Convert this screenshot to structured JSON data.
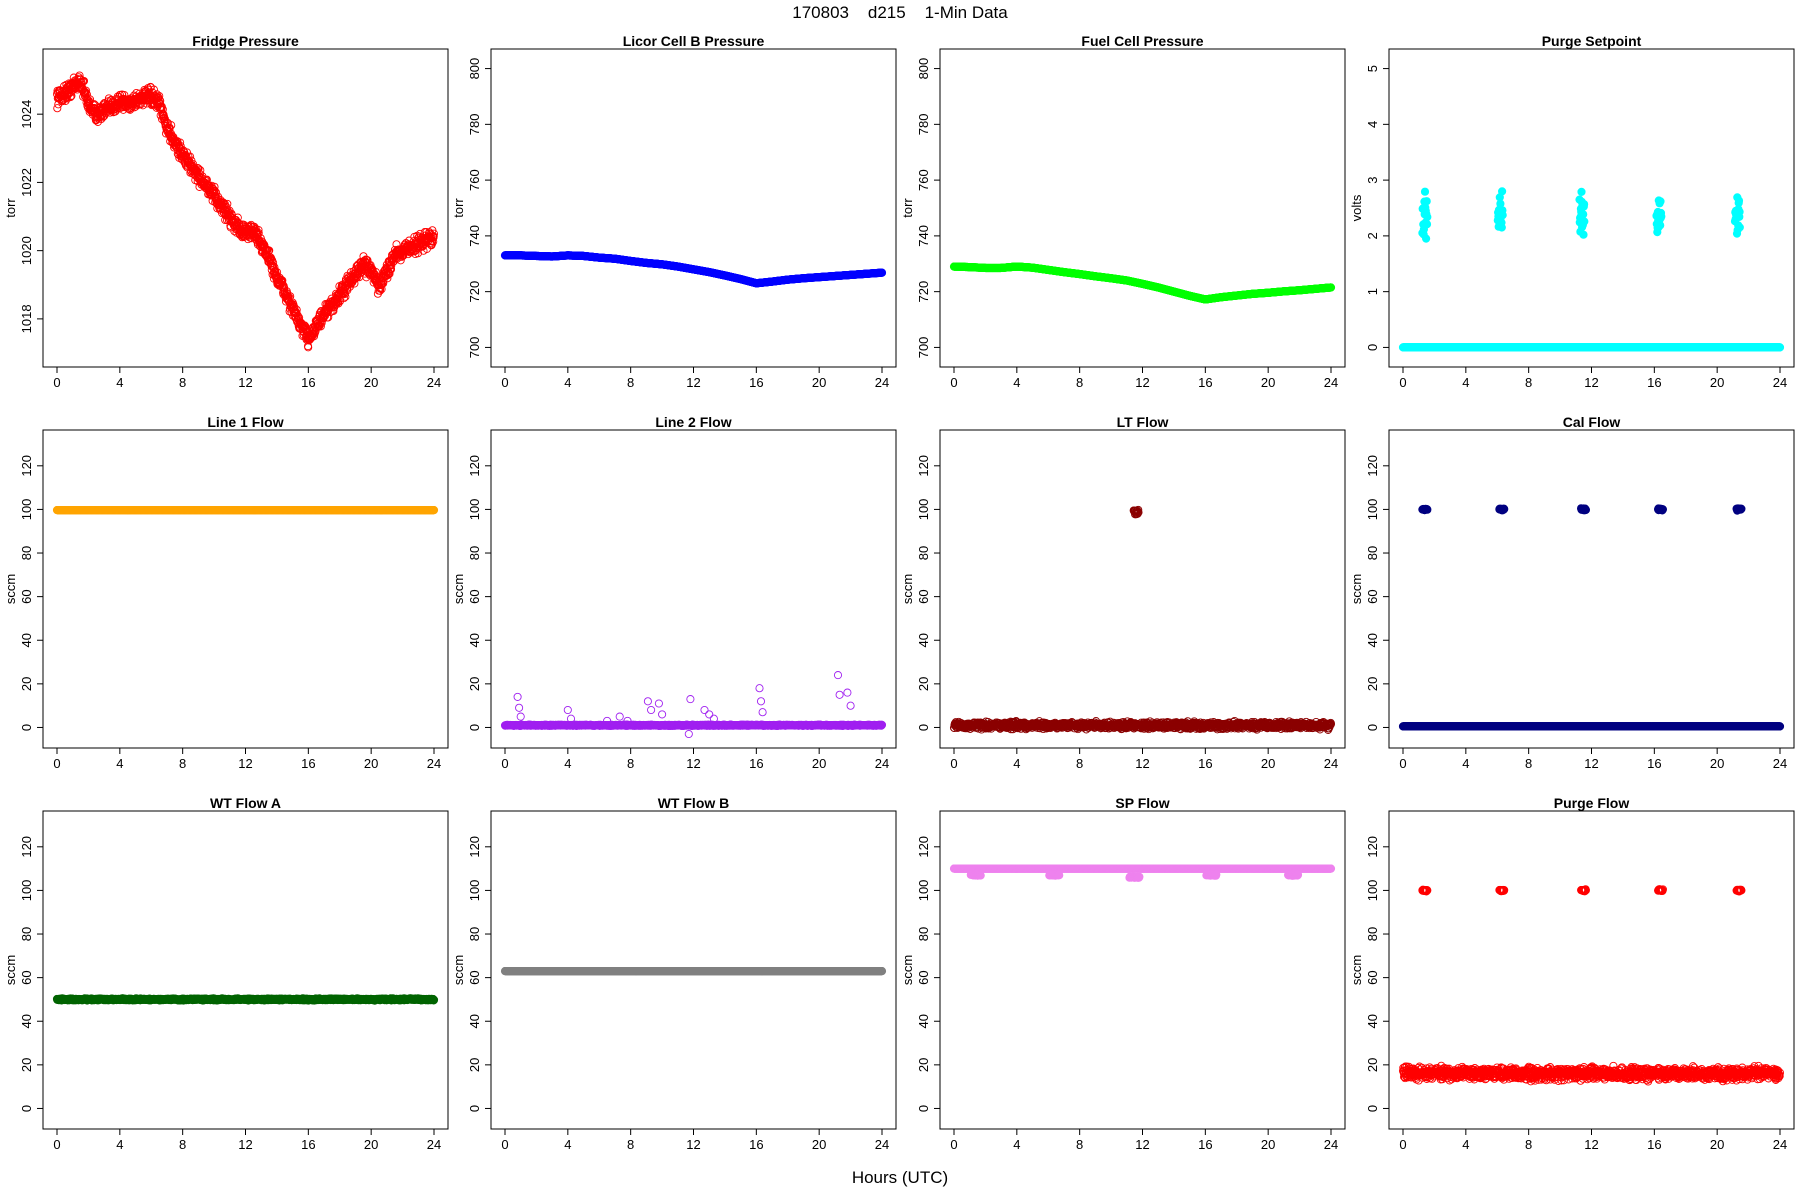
{
  "figure": {
    "title": "170803    d215    1-Min Data",
    "xlabel": "Hours (UTC)"
  },
  "chart_data": [
    {
      "type": "scatter",
      "title": "Fridge Pressure",
      "ylabel": "torr",
      "color": "#ff0000",
      "marker": "open-circle",
      "xlim": [
        0,
        24
      ],
      "ylim": [
        1017,
        1025.5
      ],
      "xticks": [
        0,
        4,
        8,
        12,
        16,
        20,
        24
      ],
      "yticks": [
        1018,
        1020,
        1022,
        1024
      ],
      "x": [
        0,
        0.5,
        1,
        1.5,
        2,
        2.5,
        3,
        3.5,
        4,
        4.5,
        5,
        5.5,
        6,
        6.5,
        7,
        7.5,
        8,
        8.5,
        9,
        9.5,
        10,
        10.5,
        11,
        11.5,
        12,
        12.5,
        13,
        13.5,
        14,
        14.5,
        15,
        15.5,
        16,
        16.5,
        17,
        17.5,
        18,
        18.5,
        19,
        19.5,
        20,
        20.5,
        21,
        21.5,
        22,
        22.5,
        23,
        23.5,
        24
      ],
      "y": [
        1024.5,
        1024.6,
        1024.8,
        1025,
        1024.3,
        1024,
        1024.1,
        1024.2,
        1024.4,
        1024.3,
        1024.4,
        1024.5,
        1024.5,
        1024.3,
        1023.6,
        1023.2,
        1022.8,
        1022.5,
        1022.2,
        1021.9,
        1021.6,
        1021.3,
        1021,
        1020.7,
        1020.5,
        1020.6,
        1020.2,
        1019.8,
        1019.2,
        1018.8,
        1018.3,
        1017.8,
        1017.4,
        1017.8,
        1018.1,
        1018.4,
        1018.7,
        1019,
        1019.3,
        1019.6,
        1019.4,
        1018.9,
        1019.4,
        1019.9,
        1020,
        1020.1,
        1020.2,
        1020.3,
        1020.4
      ],
      "scatter": 0.35
    },
    {
      "type": "scatter",
      "title": "Licor Cell B Pressure",
      "ylabel": "torr",
      "color": "#0000ff",
      "marker": "filled",
      "xlim": [
        0,
        24
      ],
      "ylim": [
        698,
        802
      ],
      "xticks": [
        0,
        4,
        8,
        12,
        16,
        20,
        24
      ],
      "yticks": [
        700,
        720,
        740,
        760,
        780,
        800
      ],
      "x": [
        0,
        1,
        2,
        3,
        4,
        5,
        6,
        7,
        8,
        9,
        10,
        11,
        12,
        13,
        14,
        15,
        16,
        17,
        18,
        19,
        20,
        21,
        22,
        23,
        24
      ],
      "y": [
        733,
        733,
        732.8,
        732.6,
        733,
        732.8,
        732.2,
        731.8,
        731,
        730.3,
        729.8,
        729,
        728,
        727,
        725.8,
        724.5,
        723,
        723.6,
        724.3,
        724.8,
        725.2,
        725.6,
        726,
        726.4,
        726.8
      ],
      "scatter": 0
    },
    {
      "type": "scatter",
      "title": "Fuel Cell Pressure",
      "ylabel": "torr",
      "color": "#00ff00",
      "marker": "filled",
      "xlim": [
        0,
        24
      ],
      "ylim": [
        698,
        802
      ],
      "xticks": [
        0,
        4,
        8,
        12,
        16,
        20,
        24
      ],
      "yticks": [
        700,
        720,
        740,
        760,
        780,
        800
      ],
      "x": [
        0,
        1,
        2,
        3,
        4,
        5,
        6,
        7,
        8,
        9,
        10,
        11,
        12,
        13,
        14,
        15,
        16,
        17,
        18,
        19,
        20,
        21,
        22,
        23,
        24
      ],
      "y": [
        729,
        728.8,
        728.5,
        728.5,
        729,
        728.6,
        727.8,
        727,
        726.3,
        725.5,
        724.8,
        724,
        722.8,
        721.5,
        720,
        718.5,
        717.2,
        718,
        718.6,
        719.2,
        719.6,
        720.1,
        720.5,
        721,
        721.5
      ],
      "scatter": 0
    },
    {
      "type": "scatter",
      "title": "Purge Setpoint",
      "ylabel": "volts",
      "color": "#00ffff",
      "marker": "filled",
      "xlim": [
        0,
        24
      ],
      "ylim": [
        -0.1,
        5.1
      ],
      "xticks": [
        0,
        4,
        8,
        12,
        16,
        20,
        24
      ],
      "yticks": [
        0,
        1,
        2,
        3,
        4,
        5
      ],
      "baseline": 0,
      "event_hours": [
        1.4,
        6.2,
        11.4,
        16.3,
        21.3
      ],
      "event_value": 2.32,
      "scatter": 0
    },
    {
      "type": "scatter",
      "title": "Line 1 Flow",
      "ylabel": "sccm",
      "color": "#ffa500",
      "marker": "filled",
      "xlim": [
        0,
        24
      ],
      "ylim": [
        -3,
        130
      ],
      "xticks": [
        0,
        4,
        8,
        12,
        16,
        20,
        24
      ],
      "yticks": [
        0,
        20,
        40,
        60,
        80,
        100,
        120
      ],
      "baseline": 99.7,
      "scatter": 0
    },
    {
      "type": "scatter",
      "title": "Line 2 Flow",
      "ylabel": "sccm",
      "color": "#a020f0",
      "marker": "open-circle",
      "xlim": [
        0,
        24
      ],
      "ylim": [
        -3,
        130
      ],
      "xticks": [
        0,
        4,
        8,
        12,
        16,
        20,
        24
      ],
      "yticks": [
        0,
        20,
        40,
        60,
        80,
        100,
        120
      ],
      "baseline": 1,
      "spikes": [
        [
          0.8,
          14
        ],
        [
          0.9,
          9
        ],
        [
          1,
          5
        ],
        [
          4,
          8
        ],
        [
          4.2,
          4
        ],
        [
          6.5,
          3
        ],
        [
          7.3,
          5
        ],
        [
          7.8,
          3
        ],
        [
          9.1,
          12
        ],
        [
          9.3,
          8
        ],
        [
          9.8,
          11
        ],
        [
          10,
          6
        ],
        [
          11.8,
          13
        ],
        [
          11.7,
          -3
        ],
        [
          12.7,
          8
        ],
        [
          13,
          6
        ],
        [
          13.3,
          4
        ],
        [
          16.2,
          18
        ],
        [
          16.3,
          12
        ],
        [
          16.4,
          7
        ],
        [
          21.2,
          24
        ],
        [
          21.3,
          15
        ],
        [
          21.8,
          16
        ],
        [
          22,
          10
        ]
      ],
      "scatter": 0.4
    },
    {
      "type": "scatter",
      "title": "LT Flow",
      "ylabel": "sccm",
      "color": "#8b0000",
      "marker": "open-circle",
      "xlim": [
        0,
        24
      ],
      "ylim": [
        -3,
        130
      ],
      "xticks": [
        0,
        4,
        8,
        12,
        16,
        20,
        24
      ],
      "yticks": [
        0,
        20,
        40,
        60,
        80,
        100,
        120
      ],
      "baseline": 1,
      "event_hours": [
        11.6
      ],
      "event_value": 99,
      "scatter": 2.2
    },
    {
      "type": "scatter",
      "title": "Cal Flow",
      "ylabel": "sccm",
      "color": "#000080",
      "marker": "filled",
      "xlim": [
        0,
        24
      ],
      "ylim": [
        -3,
        130
      ],
      "xticks": [
        0,
        4,
        8,
        12,
        16,
        20,
        24
      ],
      "yticks": [
        0,
        20,
        40,
        60,
        80,
        100,
        120
      ],
      "baseline": 0.5,
      "event_hours": [
        1.4,
        6.3,
        11.5,
        16.4,
        21.4
      ],
      "event_value": 100,
      "scatter": 0
    },
    {
      "type": "scatter",
      "title": "WT Flow A",
      "ylabel": "sccm",
      "color": "#006400",
      "marker": "filled",
      "xlim": [
        0,
        24
      ],
      "ylim": [
        -3,
        130
      ],
      "xticks": [
        0,
        4,
        8,
        12,
        16,
        20,
        24
      ],
      "yticks": [
        0,
        20,
        40,
        60,
        80,
        100,
        120
      ],
      "baseline": 50,
      "scatter": 0.6
    },
    {
      "type": "scatter",
      "title": "WT Flow B",
      "ylabel": "sccm",
      "color": "#808080",
      "marker": "filled",
      "xlim": [
        0,
        24
      ],
      "ylim": [
        -3,
        130
      ],
      "xticks": [
        0,
        4,
        8,
        12,
        16,
        20,
        24
      ],
      "yticks": [
        0,
        20,
        40,
        60,
        80,
        100,
        120
      ],
      "baseline": 63,
      "scatter": 0
    },
    {
      "type": "scatter",
      "title": "SP Flow",
      "ylabel": "sccm",
      "color": "#ee82ee",
      "marker": "filled",
      "xlim": [
        0,
        24
      ],
      "ylim": [
        -3,
        130
      ],
      "xticks": [
        0,
        4,
        8,
        12,
        16,
        20,
        24
      ],
      "yticks": [
        0,
        20,
        40,
        60,
        80,
        100,
        120
      ],
      "baseline": 110,
      "dips": [
        [
          1.4,
          107
        ],
        [
          6.4,
          107
        ],
        [
          11.5,
          106
        ],
        [
          16.4,
          107
        ],
        [
          21.6,
          107
        ]
      ],
      "scatter": 0
    },
    {
      "type": "scatter",
      "title": "Purge Flow",
      "ylabel": "sccm",
      "color": "#ff0000",
      "marker": "open-circle",
      "xlim": [
        0,
        24
      ],
      "ylim": [
        -3,
        130
      ],
      "xticks": [
        0,
        4,
        8,
        12,
        16,
        20,
        24
      ],
      "yticks": [
        0,
        20,
        40,
        60,
        80,
        100,
        120
      ],
      "baseline": 16,
      "event_hours": [
        1.4,
        6.3,
        11.5,
        16.4,
        21.4
      ],
      "event_value": 100,
      "scatter": 4
    }
  ]
}
